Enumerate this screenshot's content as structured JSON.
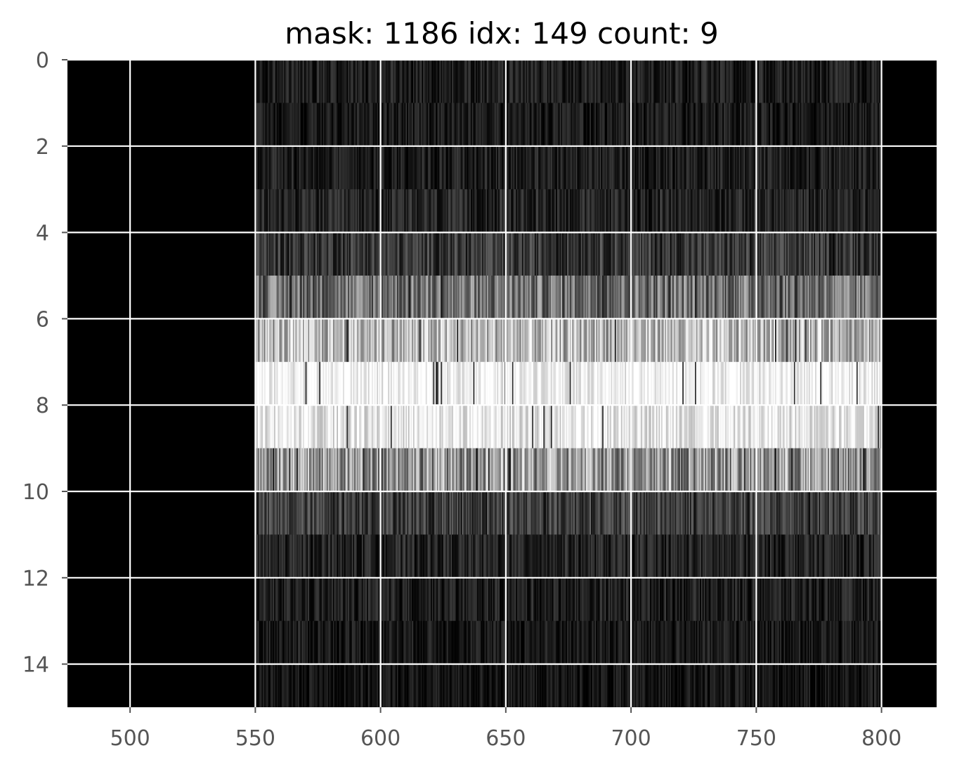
{
  "chart_data": {
    "type": "heatmap",
    "title": "mask: 1186 idx: 149 count: 9",
    "xlabel": "",
    "ylabel": "",
    "xlim": [
      475,
      822
    ],
    "ylim": [
      15,
      0
    ],
    "x_ticks": [
      "500",
      "550",
      "600",
      "650",
      "700",
      "750",
      "800"
    ],
    "y_ticks": [
      "0",
      "2",
      "4",
      "6",
      "8",
      "10",
      "12",
      "14"
    ],
    "grid": true,
    "colormap": "gray",
    "background_color": "#000000",
    "grid_color": "#ffffff",
    "data_x_range": [
      550,
      800
    ],
    "row_intensity": [
      0.12,
      0.1,
      0.12,
      0.14,
      0.22,
      0.45,
      0.72,
      0.97,
      0.92,
      0.6,
      0.25,
      0.14,
      0.12,
      0.1,
      0.08
    ]
  }
}
